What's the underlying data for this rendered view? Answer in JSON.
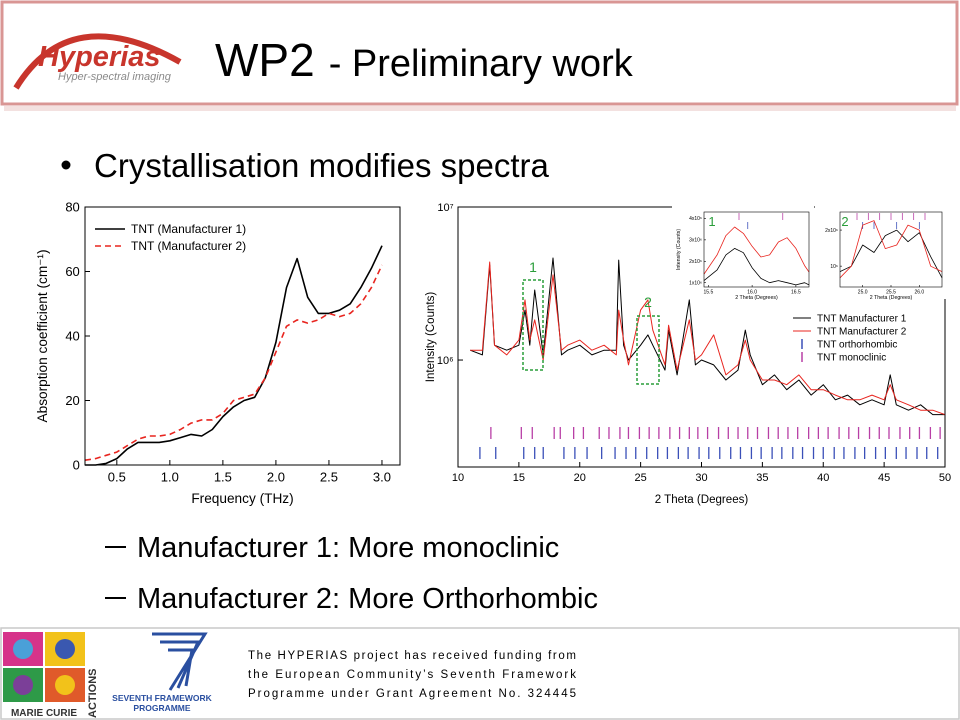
{
  "header": {
    "title_main": "WP2",
    "title_rest": "- Preliminary work",
    "logo_name": "Hyperias",
    "logo_tagline": "Hyper-spectral imaging"
  },
  "bullet": "Crystallisation modifies spectra",
  "sub_bullets": [
    "Manufacturer 1: More monoclinic",
    "Manufacturer 2: More Orthorhombic"
  ],
  "footer": {
    "funding": [
      "The HYPERIAS project has received funding from",
      "the European Community’s Seventh Framework",
      "Programme under Grant Agreement No. 324445"
    ],
    "marie_curie": "MARIE CURIE",
    "actions": "ACTIONS",
    "fp7_line1": "SEVENTH FRAMEWORK",
    "fp7_line2": "PROGRAMME"
  },
  "chart_data": [
    {
      "type": "line",
      "x_label": "Frequency (THz)",
      "y_label": "Absorption coefficient (cm⁻¹)",
      "xlim": [
        0.2,
        3.17
      ],
      "ylim": [
        0,
        80
      ],
      "xticks": [
        0.5,
        {
          "value": 1,
          "label": "1.0"
        },
        1.5,
        {
          "value": 2,
          "label": "2.0"
        },
        2.5,
        {
          "value": 3,
          "label": "3.0"
        }
      ],
      "yticks": [
        0,
        20,
        40,
        60,
        80
      ],
      "legend": "upper left",
      "x": [
        0.2,
        0.3,
        0.4,
        0.5,
        0.6,
        0.7,
        0.8,
        0.9,
        1,
        1.1,
        1.2,
        1.3,
        1.4,
        1.5,
        1.6,
        1.7,
        1.8,
        1.9,
        2,
        2.1,
        2.2,
        2.3,
        2.4,
        2.5,
        2.6,
        2.7,
        2.8,
        2.9,
        3
      ],
      "series": [
        {
          "name": "TNT (Manufacturer 1)",
          "color": "#000000",
          "line_style": "solid",
          "values": [
            0,
            0,
            0.5,
            2,
            5,
            7,
            7,
            7,
            7.5,
            8.5,
            9.5,
            9,
            11,
            15,
            18,
            20,
            21,
            27,
            38,
            55,
            64,
            52,
            47,
            47,
            48,
            50,
            55,
            61,
            68
          ]
        },
        {
          "name": "TNT (Manufacturer 2)",
          "color": "#e8251f",
          "line_style": "dashed",
          "values": [
            1.5,
            2,
            3,
            4,
            6,
            8,
            9,
            9,
            9.5,
            11,
            13,
            14,
            14,
            16,
            20,
            21,
            22,
            27,
            35,
            43,
            45,
            44,
            45,
            47,
            46,
            47,
            50,
            55,
            62
          ]
        }
      ]
    },
    {
      "type": "line",
      "x_label": "2 Theta (Degrees)",
      "y_label": "Intensity (Counts)",
      "xlim": [
        10,
        50
      ],
      "ylim": [
        200000,
        10000000
      ],
      "log_y": true,
      "xticks": [
        10,
        15,
        20,
        25,
        30,
        35,
        40,
        45,
        50
      ],
      "yticks": [
        {
          "value": 1000000,
          "label": "10⁶"
        },
        {
          "value": 10000000,
          "label": "10⁷"
        }
      ],
      "legend": "right",
      "annotations": [
        "1",
        "2"
      ],
      "x": [
        11,
        12,
        12.6,
        13,
        14,
        15,
        15.5,
        15.9,
        16.3,
        17,
        17.8,
        18.5,
        19,
        20,
        21,
        22,
        23,
        23.2,
        23.6,
        24,
        25,
        25.6,
        26,
        27,
        27.3,
        28,
        29,
        29.5,
        30,
        31,
        32,
        33,
        33.6,
        34,
        35,
        36,
        37,
        38,
        39,
        40,
        41,
        42,
        43,
        44,
        45,
        45.5,
        46,
        47,
        48,
        49,
        50
      ],
      "series": [
        {
          "name": "TNT Manufacturer 1",
          "color": "#000000",
          "line_style": "solid",
          "values": [
            1160000,
            1080000,
            4180000,
            1250000,
            1160000,
            1250000,
            2120000,
            1250000,
            2870000,
            1080000,
            4640000,
            1080000,
            1160000,
            1250000,
            1080000,
            1160000,
            1160000,
            4500000,
            1250000,
            1000000,
            1250000,
            1460000,
            1250000,
            860000,
            1570000,
            800000,
            2470000,
            930000,
            1000000,
            930000,
            740000,
            860000,
            1570000,
            1080000,
            690000,
            800000,
            640000,
            740000,
            590000,
            690000,
            550000,
            590000,
            510000,
            550000,
            510000,
            800000,
            510000,
            470000,
            510000,
            440000,
            440000
          ]
        },
        {
          "name": "TNT Manufacturer 2",
          "color": "#e8251f",
          "line_style": "solid",
          "values": [
            1160000,
            1160000,
            4370000,
            1250000,
            1080000,
            1350000,
            2470000,
            1350000,
            1830000,
            1000000,
            3600000,
            1160000,
            1250000,
            1350000,
            1160000,
            1250000,
            1080000,
            2120000,
            1350000,
            930000,
            2120000,
            2470000,
            1570000,
            930000,
            1690000,
            860000,
            1830000,
            1000000,
            1080000,
            1460000,
            800000,
            930000,
            1350000,
            1000000,
            740000,
            740000,
            690000,
            800000,
            640000,
            640000,
            590000,
            550000,
            550000,
            590000,
            550000,
            690000,
            550000,
            510000,
            470000,
            470000,
            440000
          ]
        }
      ],
      "references": [
        {
          "name": "TNT orthorhombic",
          "color": "#3a4fb8",
          "positions": [
            11.8,
            13.1,
            15.4,
            16.3,
            17,
            18.7,
            19.6,
            20.6,
            21.8,
            22.9,
            23.8,
            24.6,
            25.5,
            26.4,
            27.2,
            28.1,
            28.9,
            29.8,
            30.6,
            31.5,
            32.4,
            33.2,
            34.1,
            34.9,
            35.8,
            36.6,
            37.5,
            38.3,
            39.2,
            40,
            40.9,
            41.7,
            42.6,
            43.4,
            44.3,
            45.1,
            46,
            46.8,
            47.7,
            48.5,
            49.4
          ]
        },
        {
          "name": "TNT monoclinic",
          "color": "#b83fa6",
          "positions": [
            12.7,
            15.2,
            16.1,
            17.9,
            18.4,
            19.5,
            20.3,
            21.6,
            22.4,
            23.3,
            24,
            24.9,
            25.7,
            26.5,
            27.4,
            28.2,
            29,
            29.7,
            30.5,
            31.4,
            32.2,
            33,
            33.8,
            34.6,
            35.5,
            36.3,
            37.1,
            37.9,
            38.8,
            39.6,
            40.4,
            41.3,
            42.1,
            42.9,
            43.8,
            44.6,
            45.4,
            46.3,
            47.1,
            47.9,
            48.8,
            49.6
          ]
        }
      ]
    },
    {
      "type": "line",
      "x_label": "2 Theta (Degrees)",
      "y_label": "Intensity (Counts)",
      "xlim": [
        15.45,
        16.65
      ],
      "ylim": [
        800000,
        4300000
      ],
      "xticks": [
        15.5,
        {
          "value": 16,
          "label": "16.0"
        },
        16.5
      ],
      "yticks": [
        {
          "value": 1000000,
          "label": "1x10⁶"
        },
        {
          "value": 2000000,
          "label": "2x10⁶"
        },
        {
          "value": 3000000,
          "label": "3x10⁶"
        },
        {
          "value": 4000000,
          "label": "4x10⁶"
        }
      ],
      "annotations": [
        "1"
      ],
      "x": [
        15.45,
        15.6,
        15.7,
        15.8,
        15.9,
        16,
        16.1,
        16.2,
        16.3,
        16.4,
        16.5,
        16.6,
        16.65
      ],
      "series": [
        {
          "color": "#000000",
          "line_style": "solid",
          "values": [
            1100000,
            1600000,
            2300000,
            2600000,
            2400000,
            1700000,
            1200000,
            1000000,
            1100000,
            1000000,
            900000,
            1000000,
            900000
          ]
        },
        {
          "color": "#e8251f",
          "line_style": "solid",
          "values": [
            1400000,
            2300000,
            3200000,
            3600000,
            3300000,
            2700000,
            2200000,
            2300000,
            2900000,
            3100000,
            2600000,
            1800000,
            1500000
          ]
        }
      ],
      "references": [
        {
          "color": "#3a4fb8",
          "positions": [
            15.95
          ]
        },
        {
          "color": "#b83fa6",
          "positions": [
            15.85,
            16.35
          ]
        }
      ]
    },
    {
      "type": "line",
      "x_label": "2 Theta (Degrees)",
      "xlim": [
        24.6,
        26.4
      ],
      "ylim": [
        670000,
        2830000
      ],
      "log_y": true,
      "xticks": [
        {
          "value": 25,
          "label": "25.0"
        },
        25.5,
        {
          "value": 26,
          "label": "26.0"
        }
      ],
      "yticks": [
        {
          "value": 1000000,
          "label": "10⁶"
        },
        {
          "value": 2000000,
          "label": "2x10⁶"
        }
      ],
      "annotations": [
        "2"
      ],
      "x": [
        24.6,
        24.8,
        25,
        25.2,
        25.4,
        25.6,
        25.8,
        26,
        26.2,
        26.4
      ],
      "series": [
        {
          "color": "#000000",
          "line_style": "solid",
          "values": [
            900000,
            1000000,
            1500000,
            1300000,
            1800000,
            2000000,
            1600000,
            1900000,
            1200000,
            800000
          ]
        },
        {
          "color": "#e8251f",
          "line_style": "solid",
          "values": [
            800000,
            1000000,
            2200000,
            2400000,
            1400000,
            1500000,
            2200000,
            2000000,
            1000000,
            900000
          ]
        }
      ],
      "references": [
        {
          "color": "#3a4fb8",
          "positions": [
            25,
            25.2,
            25.6,
            26
          ]
        },
        {
          "color": "#b83fa6",
          "positions": [
            24.9,
            25.1,
            25.3,
            25.5,
            25.7,
            25.9,
            26.1
          ]
        }
      ]
    }
  ]
}
